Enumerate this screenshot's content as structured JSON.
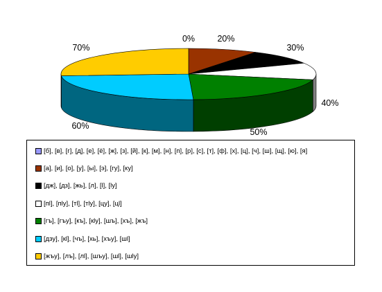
{
  "chart_data": {
    "type": "pie",
    "labels": [
      "0%",
      "20%",
      "30%",
      "40%",
      "50%",
      "60%",
      "70%"
    ],
    "values": [
      0,
      8.8,
      9.2,
      10.6,
      20.8,
      24.5,
      26.1
    ],
    "series": [
      {
        "name": "[б], [в], [г], [д], [е], [ё], [ж], [з], [й], [к], [м], [н], [п], [р], [с], [т], [ф], [х], [ц], [ч], [ш], [щ], [ю], [я]",
        "value": 0,
        "label": "0%",
        "color": "#9999ff",
        "side": "#6b6bb3"
      },
      {
        "name": "[а], [и], [о], [у], [ы], [э], [гу], [ку]",
        "value": 8.8,
        "label": "20%",
        "color": "#993300",
        "side": "#4d1a00"
      },
      {
        "name": "[дж], [дз], [жь], [л], [l], [ly]",
        "value": 9.2,
        "label": "30%",
        "color": "#000000",
        "side": "#000000"
      },
      {
        "name": "[пl], [пly], [тl], [тly], [цу], [цl]",
        "value": 10.6,
        "label": "40%",
        "color": "#ffffff",
        "side": "#808080"
      },
      {
        "name": "[гъ], [гъу], [къ], [кly], [шъ], [хъ], [жъ]",
        "value": 20.8,
        "label": "50%",
        "color": "#008000",
        "side": "#003f00"
      },
      {
        "name": "[дзу], [кl], [чъ], [хь], [хъу], [шl]",
        "value": 24.5,
        "label": "60%",
        "color": "#00ccff",
        "side": "#006680"
      },
      {
        "name": "[жъу], [лъ], [лl], [шъу], [шl], [шly]",
        "value": 26.1,
        "label": "70%",
        "color": "#ffcc00",
        "side": "#806600"
      }
    ],
    "legend_position": "bottom"
  }
}
